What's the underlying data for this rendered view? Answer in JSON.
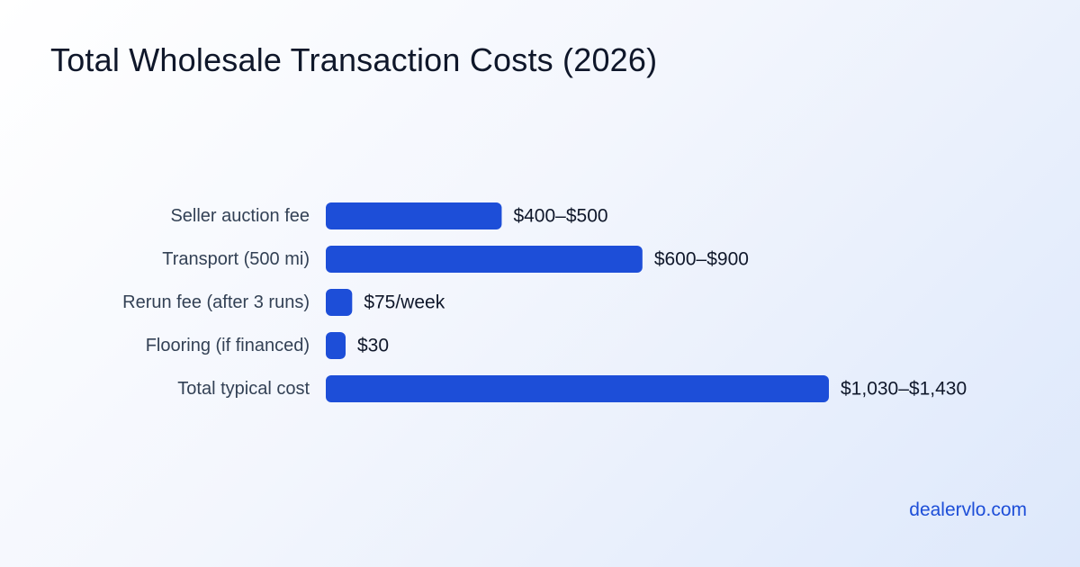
{
  "page": {
    "title": "Total Wholesale Transaction Costs (2026)",
    "footer": "dealervlo.com"
  },
  "colors": {
    "bar": "#1d4ed8",
    "title": "#0f172a",
    "category_text": "#334155",
    "value_text": "#0f172a",
    "footer_link": "#1d4ed8"
  },
  "chart_data": {
    "type": "bar",
    "orientation": "horizontal",
    "title": "Total Wholesale Transaction Costs (2026)",
    "xlabel": "",
    "ylabel": "",
    "categories": [
      "Seller auction fee",
      "Transport (500 mi)",
      "Rerun fee (after 3 runs)",
      "Flooring (if financed)",
      "Total typical cost"
    ],
    "values": [
      500,
      900,
      75,
      30,
      1430
    ],
    "value_labels": [
      "$400–$500",
      "$600–$900",
      "$75/week",
      "$30",
      "$1,030–$1,430"
    ],
    "xlim": [
      0,
      1430
    ],
    "grid": false,
    "legend": "none"
  }
}
